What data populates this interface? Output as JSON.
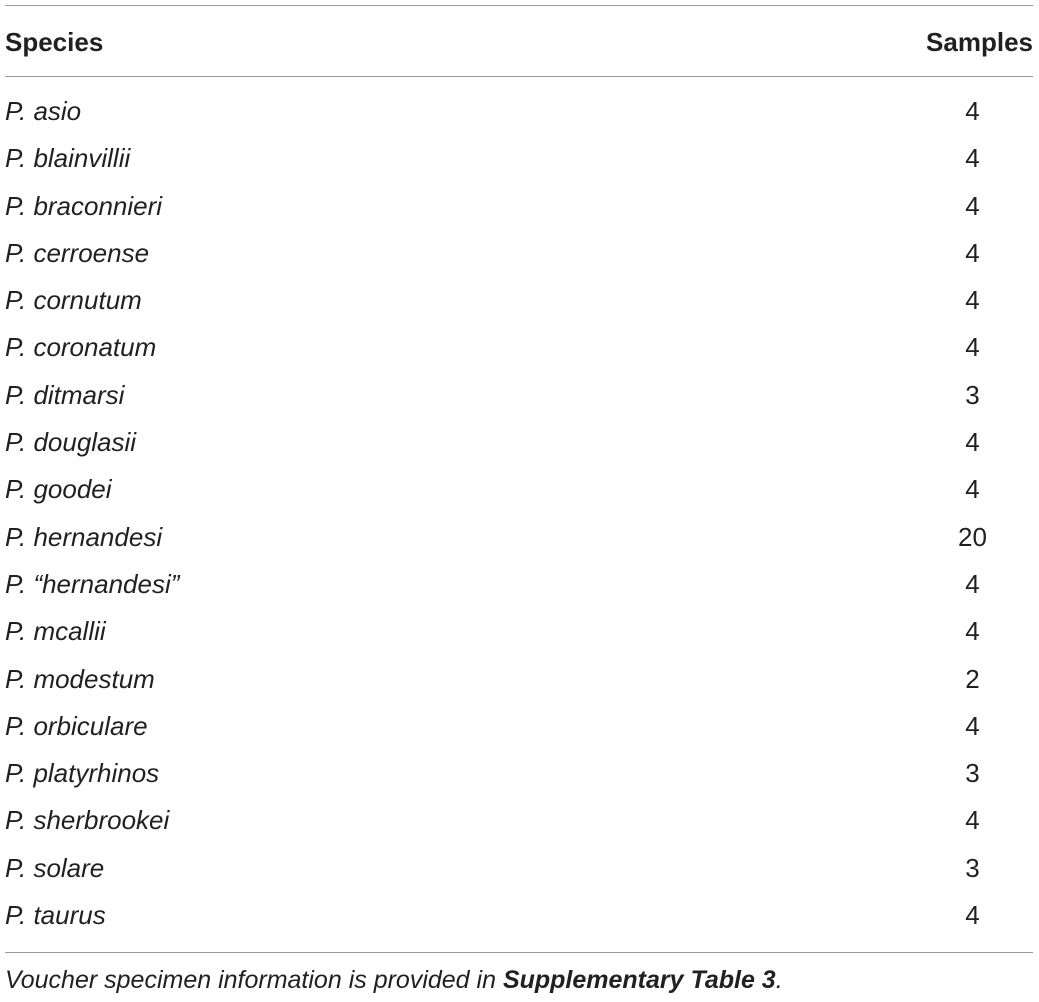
{
  "table": {
    "headers": {
      "species": "Species",
      "samples": "Samples"
    },
    "rows": [
      {
        "species": "P. asio",
        "samples": "4"
      },
      {
        "species": "P. blainvillii",
        "samples": "4"
      },
      {
        "species": "P. braconnieri",
        "samples": "4"
      },
      {
        "species": "P. cerroense",
        "samples": "4"
      },
      {
        "species": "P. cornutum",
        "samples": "4"
      },
      {
        "species": "P. coronatum",
        "samples": "4"
      },
      {
        "species": "P. ditmarsi",
        "samples": "3"
      },
      {
        "species": "P. douglasii",
        "samples": "4"
      },
      {
        "species": "P. goodei",
        "samples": "4"
      },
      {
        "species": "P. hernandesi",
        "samples": "20"
      },
      {
        "species": "P. “hernandesi”",
        "samples": "4"
      },
      {
        "species": "P. mcallii",
        "samples": "4"
      },
      {
        "species": "P. modestum",
        "samples": "2"
      },
      {
        "species": "P. orbiculare",
        "samples": "4"
      },
      {
        "species": "P. platyrhinos",
        "samples": "3"
      },
      {
        "species": "P. sherbrookei",
        "samples": "4"
      },
      {
        "species": "P. solare",
        "samples": "3"
      },
      {
        "species": "P. taurus",
        "samples": "4"
      }
    ]
  },
  "footnote": {
    "text_before": "Voucher specimen information is provided in ",
    "reference": "Supplementary Table 3",
    "text_after": "."
  }
}
